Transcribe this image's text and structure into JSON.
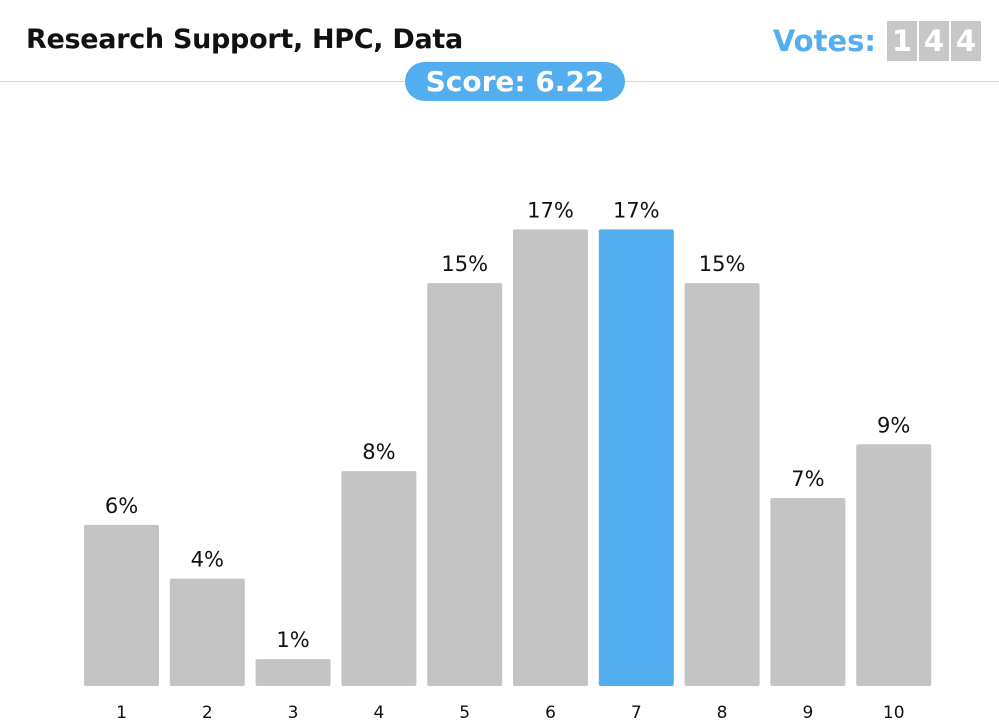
{
  "header": {
    "title": "Research Support, HPC, Data",
    "votes_label": "Votes:",
    "votes_digits": [
      "1",
      "4",
      "4"
    ],
    "score_text": "Score: 6.22"
  },
  "colors": {
    "bar": "#c4c4c4",
    "highlight": "#52aeee",
    "title": "#111111",
    "divider": "#d6d6d6"
  },
  "chart_data": {
    "type": "bar",
    "categories": [
      "1",
      "2",
      "3",
      "4",
      "5",
      "6",
      "7",
      "8",
      "9",
      "10"
    ],
    "values": [
      6,
      4,
      1,
      8,
      15,
      17,
      17,
      15,
      7,
      9
    ],
    "value_labels": [
      "6%",
      "4%",
      "1%",
      "8%",
      "15%",
      "17%",
      "17%",
      "15%",
      "7%",
      "9%"
    ],
    "highlight_index": 6,
    "grid": false,
    "legend": "none",
    "title": "",
    "xlabel": "",
    "ylabel": "",
    "ylim": [
      0,
      17.5
    ]
  }
}
